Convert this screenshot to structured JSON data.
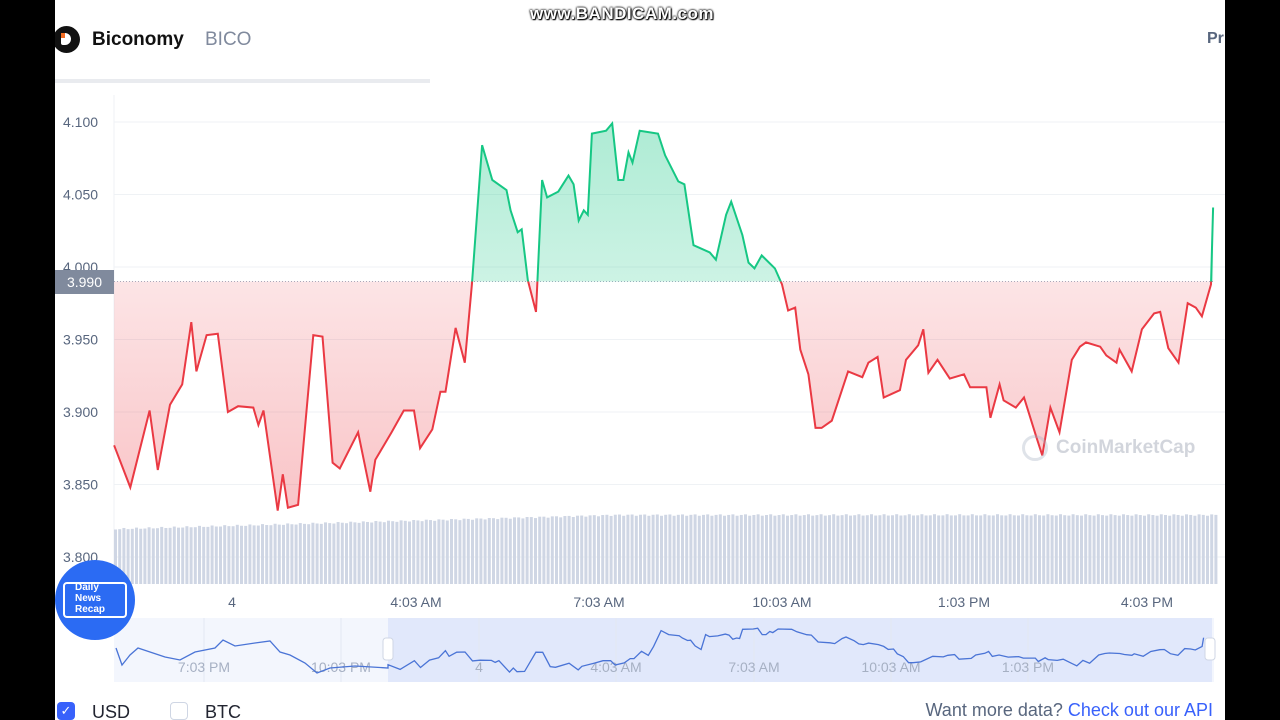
{
  "overlay": {
    "recorder_watermark": "www.BANDICAM.com",
    "news_logo": "Daily News Recap"
  },
  "header": {
    "coin_name": "Biconomy",
    "coin_symbol": "BICO",
    "right_tab_partial": "Pr",
    "logo_icon": "biconomy-logo"
  },
  "chart_data": {
    "type": "area",
    "title": "",
    "xlabel": "",
    "ylabel": "",
    "currency": "USD",
    "ylim": [
      3.8,
      4.11
    ],
    "yticks": [
      "4.100",
      "4.050",
      "4.000",
      "3.950",
      "3.900",
      "3.850",
      "3.800"
    ],
    "xticks": [
      "4",
      "4:03 AM",
      "7:03 AM",
      "10:03 AM",
      "1:03 PM",
      "4:03 PM"
    ],
    "baseline_price": 3.99,
    "baseline_label": "3.990",
    "colors": {
      "above": "#16c784",
      "below": "#ea3943",
      "volume": "#cfd6e4"
    },
    "grid": true,
    "watermark": "CoinMarketCap",
    "series": [
      {
        "points": [
          [
            "23:06",
            3.877
          ],
          [
            "23:22",
            3.848
          ],
          [
            "23:41",
            3.901
          ],
          [
            "23:49",
            3.86
          ],
          [
            "00:01",
            3.905
          ],
          [
            "00:13",
            3.919
          ],
          [
            "00:22",
            3.962
          ],
          [
            "00:27",
            3.928
          ],
          [
            "00:37",
            3.953
          ],
          [
            "00:48",
            3.954
          ],
          [
            "00:58",
            3.9
          ],
          [
            "01:08",
            3.904
          ],
          [
            "01:23",
            3.903
          ],
          [
            "01:28",
            3.891
          ],
          [
            "01:33",
            3.901
          ],
          [
            "01:47",
            3.832
          ],
          [
            "01:52",
            3.857
          ],
          [
            "01:57",
            3.834
          ],
          [
            "02:07",
            3.836
          ],
          [
            "02:22",
            3.953
          ],
          [
            "02:31",
            3.952
          ],
          [
            "02:41",
            3.865
          ],
          [
            "02:48",
            3.861
          ],
          [
            "03:06",
            3.886
          ],
          [
            "03:18",
            3.845
          ],
          [
            "03:23",
            3.867
          ],
          [
            "03:39",
            3.886
          ],
          [
            "03:51",
            3.901
          ],
          [
            "04:01",
            3.901
          ],
          [
            "04:07",
            3.875
          ],
          [
            "04:19",
            3.888
          ],
          [
            "04:27",
            3.914
          ],
          [
            "04:32",
            3.914
          ],
          [
            "04:42",
            3.958
          ],
          [
            "04:51",
            3.934
          ],
          [
            "04:58",
            3.988
          ],
          [
            "05:08",
            4.084
          ],
          [
            "05:18",
            4.06
          ],
          [
            "05:32",
            4.053
          ],
          [
            "05:36",
            4.039
          ],
          [
            "05:43",
            4.024
          ],
          [
            "05:47",
            4.026
          ],
          [
            "05:53",
            3.991
          ],
          [
            "06:01",
            3.969
          ],
          [
            "06:07",
            4.06
          ],
          [
            "06:12",
            4.048
          ],
          [
            "06:23",
            4.052
          ],
          [
            "06:33",
            4.063
          ],
          [
            "06:38",
            4.057
          ],
          [
            "06:43",
            4.032
          ],
          [
            "06:48",
            4.039
          ],
          [
            "06:52",
            4.036
          ],
          [
            "06:56",
            4.092
          ],
          [
            "07:10",
            4.094
          ],
          [
            "07:16",
            4.099
          ],
          [
            "07:22",
            4.06
          ],
          [
            "07:27",
            4.06
          ],
          [
            "07:32",
            4.079
          ],
          [
            "07:36",
            4.072
          ],
          [
            "07:43",
            4.094
          ],
          [
            "08:01",
            4.092
          ],
          [
            "08:08",
            4.077
          ],
          [
            "08:21",
            4.059
          ],
          [
            "08:27",
            4.057
          ],
          [
            "08:36",
            4.015
          ],
          [
            "08:52",
            4.01
          ],
          [
            "08:58",
            4.005
          ],
          [
            "09:08",
            4.036
          ],
          [
            "09:13",
            4.045
          ],
          [
            "09:24",
            4.022
          ],
          [
            "09:30",
            4.003
          ],
          [
            "09:36",
            3.999
          ],
          [
            "09:43",
            4.008
          ],
          [
            "09:56",
            3.999
          ],
          [
            "10:03",
            3.988
          ],
          [
            "10:09",
            3.97
          ],
          [
            "10:16",
            3.972
          ],
          [
            "10:21",
            3.943
          ],
          [
            "10:29",
            3.926
          ],
          [
            "10:36",
            3.889
          ],
          [
            "10:42",
            3.889
          ],
          [
            "10:52",
            3.894
          ],
          [
            "11:08",
            3.928
          ],
          [
            "11:22",
            3.924
          ],
          [
            "11:28",
            3.934
          ],
          [
            "11:37",
            3.938
          ],
          [
            "11:43",
            3.91
          ],
          [
            "11:59",
            3.915
          ],
          [
            "12:05",
            3.936
          ],
          [
            "12:17",
            3.946
          ],
          [
            "12:22",
            3.957
          ],
          [
            "12:27",
            3.927
          ],
          [
            "12:36",
            3.936
          ],
          [
            "12:48",
            3.923
          ],
          [
            "13:02",
            3.926
          ],
          [
            "13:08",
            3.917
          ],
          [
            "13:24",
            3.917
          ],
          [
            "13:28",
            3.896
          ],
          [
            "13:37",
            3.919
          ],
          [
            "13:41",
            3.908
          ],
          [
            "13:53",
            3.903
          ],
          [
            "14:01",
            3.91
          ],
          [
            "14:13",
            3.883
          ],
          [
            "14:19",
            3.87
          ],
          [
            "14:27",
            3.903
          ],
          [
            "14:36",
            3.886
          ],
          [
            "14:48",
            3.936
          ],
          [
            "14:56",
            3.945
          ],
          [
            "15:02",
            3.948
          ],
          [
            "15:16",
            3.945
          ],
          [
            "15:22",
            3.939
          ],
          [
            "15:32",
            3.934
          ],
          [
            "15:35",
            3.943
          ],
          [
            "15:47",
            3.928
          ],
          [
            "15:57",
            3.957
          ],
          [
            "16:09",
            3.968
          ],
          [
            "16:15",
            3.969
          ],
          [
            "16:23",
            3.944
          ],
          [
            "16:33",
            3.934
          ],
          [
            "16:42",
            3.975
          ],
          [
            "16:50",
            3.972
          ],
          [
            "16:56",
            3.966
          ],
          [
            "17:05",
            3.988
          ],
          [
            "17:07",
            4.041
          ]
        ]
      }
    ],
    "navigator": {
      "xticks": [
        "7:03 PM",
        "10:03 PM",
        "4",
        "4:03 AM",
        "7:03 AM",
        "10:03 AM",
        "1:03 PM"
      ]
    }
  },
  "footer": {
    "currencies": [
      {
        "label": "USD",
        "checked": true
      },
      {
        "label": "BTC",
        "checked": false
      }
    ],
    "more_text": "Want more data?",
    "api_link": "Check out our API"
  }
}
